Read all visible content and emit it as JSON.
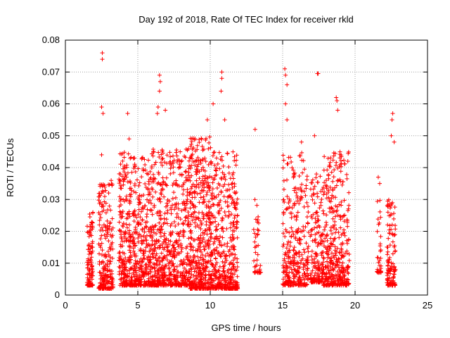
{
  "chart_data": {
    "type": "scatter",
    "title": "Day 192 of 2018, Rate Of TEC Index for receiver rkld",
    "xlabel": "GPS time / hours",
    "ylabel": "ROTI / TECUs",
    "xlim": [
      0,
      25
    ],
    "ylim": [
      0,
      0.08
    ],
    "x_ticks": [
      "0",
      "5",
      "10",
      "15",
      "20",
      "25"
    ],
    "y_ticks": [
      "0",
      "0.01",
      "0.02",
      "0.03",
      "0.04",
      "0.05",
      "0.06",
      "0.07",
      "0.08"
    ],
    "grid": true,
    "marker": "plus",
    "series_color": "#ff0000",
    "series": [
      {
        "name": "ROTI",
        "clusters": [
          {
            "x": [
              1.5,
              1.9
            ],
            "y_range": [
              0.003,
              0.026
            ],
            "count": 110
          },
          {
            "x": [
              2.3,
              3.3
            ],
            "y_range": [
              0.002,
              0.036
            ],
            "count": 220
          },
          {
            "x": [
              3.7,
              6.0
            ],
            "y_range": [
              0.003,
              0.045
            ],
            "count": 560
          },
          {
            "x": [
              6.0,
              8.6
            ],
            "y_range": [
              0.003,
              0.046
            ],
            "count": 600
          },
          {
            "x": [
              8.6,
              10.2
            ],
            "y_range": [
              0.002,
              0.05
            ],
            "count": 480
          },
          {
            "x": [
              10.2,
              11.9
            ],
            "y_range": [
              0.002,
              0.045
            ],
            "count": 400
          },
          {
            "x": [
              13.0,
              13.5
            ],
            "y_range": [
              0.007,
              0.03
            ],
            "count": 40
          },
          {
            "x": [
              15.0,
              16.8
            ],
            "y_range": [
              0.003,
              0.045
            ],
            "count": 320
          },
          {
            "x": [
              16.9,
              17.8
            ],
            "y_range": [
              0.004,
              0.038
            ],
            "count": 160
          },
          {
            "x": [
              17.8,
              19.6
            ],
            "y_range": [
              0.003,
              0.045
            ],
            "count": 380
          },
          {
            "x": [
              21.5,
              21.8
            ],
            "y_range": [
              0.007,
              0.03
            ],
            "count": 35
          },
          {
            "x": [
              22.2,
              22.8
            ],
            "y_range": [
              0.003,
              0.03
            ],
            "count": 120
          }
        ],
        "points": [
          [
            2.55,
            0.076
          ],
          [
            2.55,
            0.074
          ],
          [
            2.5,
            0.059
          ],
          [
            2.6,
            0.057
          ],
          [
            4.3,
            0.057
          ],
          [
            6.5,
            0.069
          ],
          [
            6.55,
            0.067
          ],
          [
            6.5,
            0.064
          ],
          [
            6.4,
            0.059
          ],
          [
            6.35,
            0.057
          ],
          [
            6.9,
            0.058
          ],
          [
            10.8,
            0.07
          ],
          [
            10.8,
            0.068
          ],
          [
            10.75,
            0.064
          ],
          [
            10.2,
            0.06
          ],
          [
            9.8,
            0.055
          ],
          [
            15.15,
            0.071
          ],
          [
            15.2,
            0.069
          ],
          [
            15.3,
            0.066
          ],
          [
            15.2,
            0.06
          ],
          [
            17.4,
            0.0695
          ],
          [
            17.45,
            0.0695
          ],
          [
            18.7,
            0.062
          ],
          [
            18.75,
            0.061
          ],
          [
            18.8,
            0.058
          ],
          [
            22.6,
            0.057
          ],
          [
            22.55,
            0.055
          ],
          [
            22.5,
            0.05
          ],
          [
            13.1,
            0.052
          ],
          [
            16.3,
            0.048
          ],
          [
            19.5,
            0.042
          ],
          [
            21.6,
            0.037
          ],
          [
            21.7,
            0.035
          ],
          [
            22.7,
            0.048
          ],
          [
            17.2,
            0.05
          ],
          [
            15.3,
            0.055
          ],
          [
            11.0,
            0.055
          ],
          [
            4.4,
            0.049
          ],
          [
            2.5,
            0.044
          ],
          [
            8.6,
            0.043
          ]
        ]
      }
    ]
  }
}
